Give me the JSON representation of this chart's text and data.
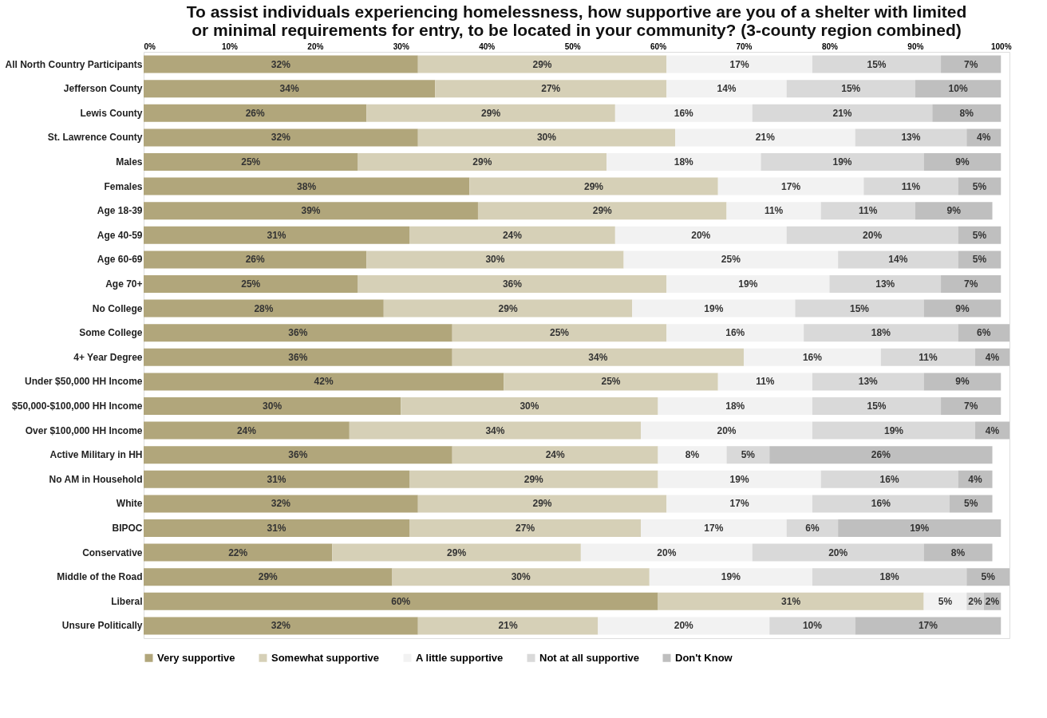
{
  "chart_data": {
    "type": "bar",
    "orientation": "horizontal",
    "stacked": true,
    "title": "To assist individuals experiencing homelessness, how supportive are you of a shelter with limited or minimal requirements for entry, to be located in your community? (3-county region combined)",
    "categories": [
      "All North Country Participants",
      "Jefferson County",
      "Lewis County",
      "St. Lawrence County",
      "Males",
      "Females",
      "Age 18-39",
      "Age 40-59",
      "Age 60-69",
      "Age 70+",
      "No College",
      "Some College",
      "4+ Year Degree",
      "Under $50,000 HH Income",
      "$50,000-$100,000 HH Income",
      "Over $100,000 HH Income",
      "Active Military in HH",
      "No AM in Household",
      "White",
      "BIPOC",
      "Conservative",
      "Middle of the Road",
      "Liberal",
      "Unsure Politically"
    ],
    "series": [
      {
        "name": "Very supportive",
        "color": "#b1a67b",
        "values": [
          32,
          34,
          26,
          32,
          25,
          38,
          39,
          31,
          26,
          25,
          28,
          36,
          36,
          42,
          30,
          24,
          36,
          31,
          32,
          31,
          22,
          29,
          60,
          32
        ],
        "value_labels": [
          "32%",
          "34%",
          "26%",
          "32%",
          "25%",
          "38%",
          "39%",
          "31%",
          "26%",
          "25%",
          "28%",
          "36%",
          "36%",
          "42%",
          "30%",
          "24%",
          "36%",
          "31%",
          "32%",
          "31%",
          "22%",
          "29%",
          "60%",
          "32%"
        ]
      },
      {
        "name": "Somewhat supportive",
        "color": "#d6d0b7",
        "values": [
          29,
          27,
          29,
          30,
          29,
          29,
          29,
          24,
          30,
          36,
          29,
          25,
          34,
          25,
          30,
          34,
          24,
          29,
          29,
          27,
          29,
          30,
          31,
          21
        ],
        "value_labels": [
          "29%",
          "27%",
          "29%",
          "30%",
          "29%",
          "29%",
          "29%",
          "24%",
          "30%",
          "36%",
          "29%",
          "25%",
          "34%",
          "25%",
          "30%",
          "34%",
          "24%",
          "29%",
          "29%",
          "27%",
          "29%",
          "30%",
          "31%",
          "21%"
        ]
      },
      {
        "name": "A little supportive",
        "color": "#f2f2f2",
        "values": [
          17,
          14,
          16,
          21,
          18,
          17,
          11,
          20,
          25,
          19,
          19,
          16,
          16,
          11,
          18,
          20,
          8,
          19,
          17,
          17,
          20,
          19,
          5,
          20
        ],
        "value_labels": [
          "17%",
          "14%",
          "16%",
          "21%",
          "18%",
          "17%",
          "11%",
          "20%",
          "25%",
          "19%",
          "19%",
          "16%",
          "16%",
          "11%",
          "18%",
          "20%",
          "8%",
          "19%",
          "17%",
          "17%",
          "20%",
          "19%",
          "5%",
          "20%"
        ]
      },
      {
        "name": "Not at all supportive",
        "color": "#d9d9d9",
        "values": [
          15,
          15,
          21,
          13,
          19,
          11,
          11,
          20,
          14,
          13,
          15,
          18,
          11,
          13,
          15,
          19,
          5,
          16,
          16,
          6,
          20,
          18,
          2,
          10
        ],
        "value_labels": [
          "15%",
          "15%",
          "21%",
          "13%",
          "19%",
          "11%",
          "11%",
          "20%",
          "14%",
          "13%",
          "15%",
          "18%",
          "11%",
          "13%",
          "15%",
          "19%",
          "5%",
          "16%",
          "16%",
          "6%",
          "20%",
          "18%",
          "2%",
          "10%"
        ]
      },
      {
        "name": "Don't Know",
        "color": "#bfbfbf",
        "values": [
          7,
          10,
          8,
          4,
          9,
          5,
          9,
          5,
          5,
          7,
          9,
          6,
          4,
          9,
          7,
          4,
          26,
          4,
          5,
          19,
          8,
          5,
          2,
          17
        ],
        "value_labels": [
          "7%",
          "10%",
          "8%",
          "4%",
          "9%",
          "5%",
          "9%",
          "5%",
          "5%",
          "7%",
          "9%",
          "6%",
          "4%",
          "9%",
          "7%",
          "4%",
          "26%",
          "4%",
          "5%",
          "19%",
          "8%",
          "5%",
          "2%",
          "17%"
        ]
      }
    ],
    "xlim": [
      0,
      101
    ],
    "xticks": [
      {
        "value": 0,
        "label": "0%"
      },
      {
        "value": 10,
        "label": "10%"
      },
      {
        "value": 20,
        "label": "20%"
      },
      {
        "value": 30,
        "label": "30%"
      },
      {
        "value": 40,
        "label": "40%"
      },
      {
        "value": 50,
        "label": "50%"
      },
      {
        "value": 60,
        "label": "60%"
      },
      {
        "value": 70,
        "label": "70%"
      },
      {
        "value": 80,
        "label": "80%"
      },
      {
        "value": 90,
        "label": "90%"
      },
      {
        "value": 100,
        "label": "100%"
      }
    ],
    "grid": false,
    "legend": "bottom"
  }
}
